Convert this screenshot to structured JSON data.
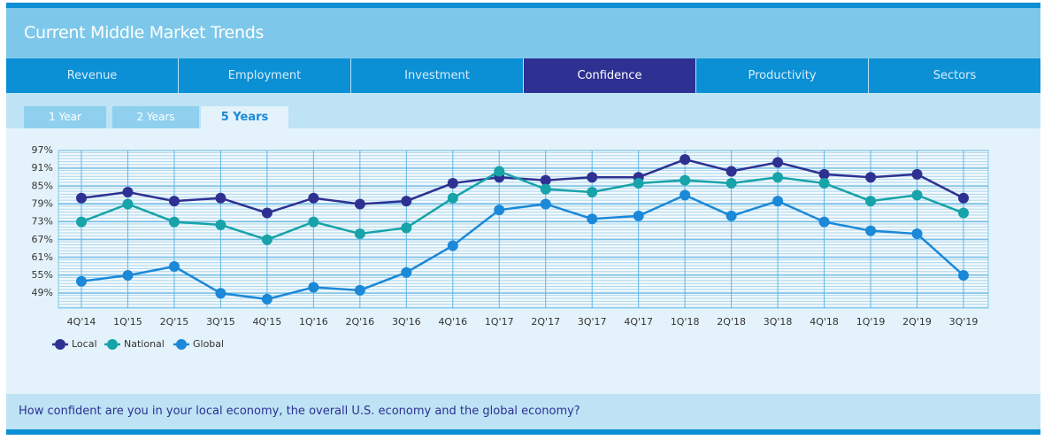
{
  "header": {
    "title": "Current Middle Market Trends"
  },
  "tabs": [
    "Revenue",
    "Employment",
    "Investment",
    "Confidence",
    "Productivity",
    "Sectors"
  ],
  "periods": [
    "1 Year",
    "2 Years",
    "5 Years"
  ],
  "question": "How confident are you in your local economy, the overall U.S. economy and the global economy?",
  "chart_data": {
    "type": "line",
    "categories": [
      "4Q'14",
      "1Q'15",
      "2Q'15",
      "3Q'15",
      "4Q'15",
      "1Q'16",
      "2Q'16",
      "3Q'16",
      "4Q'16",
      "1Q'17",
      "2Q'17",
      "3Q'17",
      "4Q'17",
      "1Q'18",
      "2Q'18",
      "3Q'18",
      "4Q'18",
      "1Q'19",
      "2Q'19",
      "3Q'19"
    ],
    "series": [
      {
        "name": "Local",
        "color": "#2e3192",
        "values": [
          81,
          83,
          80,
          81,
          76,
          81,
          79,
          80,
          86,
          88,
          87,
          88,
          88,
          94,
          90,
          93,
          89,
          88,
          89,
          81
        ]
      },
      {
        "name": "National",
        "color": "#16a3a9",
        "values": [
          73,
          79,
          73,
          72,
          67,
          73,
          69,
          71,
          81,
          90,
          84,
          83,
          86,
          87,
          86,
          88,
          86,
          80,
          82,
          76
        ]
      },
      {
        "name": "Global",
        "color": "#1b88d8",
        "values": [
          53,
          55,
          58,
          49,
          47,
          51,
          50,
          56,
          65,
          77,
          79,
          74,
          75,
          82,
          75,
          80,
          73,
          70,
          69,
          55
        ]
      }
    ],
    "ylim": [
      44,
      97
    ],
    "yticks": [
      {
        "value": 49,
        "label": "49%"
      },
      {
        "value": 55,
        "label": "55%"
      },
      {
        "value": 61,
        "label": "61%"
      },
      {
        "value": 67,
        "label": "67%"
      },
      {
        "value": 73,
        "label": "73%"
      },
      {
        "value": 79,
        "label": "79%"
      },
      {
        "value": 85,
        "label": "85%"
      },
      {
        "value": 91,
        "label": "91%"
      },
      {
        "value": 97,
        "label": "97%"
      }
    ],
    "grid": true
  }
}
